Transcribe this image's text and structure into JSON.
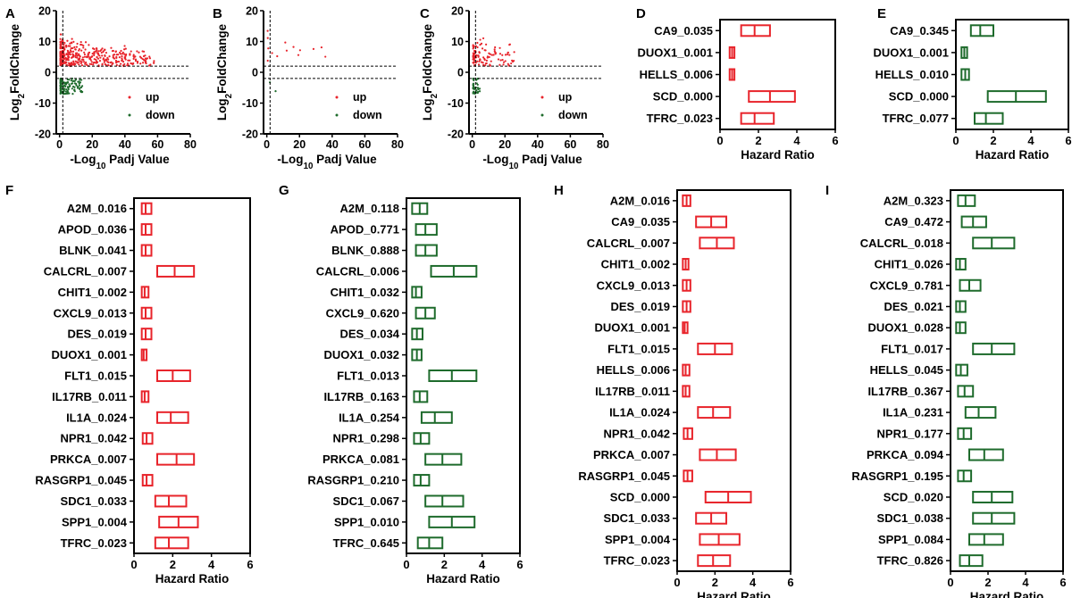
{
  "colors": {
    "red": "#e8242b",
    "green": "#1e6b2c",
    "axis": "#000000"
  },
  "volcano": [
    {
      "letter": "A",
      "type": "scatter",
      "xlabel_pre": "-Log",
      "xlabel_sub": "10",
      "xlabel_post": "Padj Value",
      "ylabel_pre": "Log",
      "ylabel_sub": "2",
      "ylabel_post": "FoldChange",
      "xlim": [
        -2,
        80
      ],
      "ylim": [
        -20,
        20
      ],
      "xticks": [
        "0",
        "20",
        "40",
        "60",
        "80"
      ],
      "yticks": [
        "-20",
        "-10",
        "0",
        "10",
        "20"
      ],
      "legend": [
        "up",
        "down"
      ],
      "density": "high",
      "up_max_x": 58,
      "down_max_x": 14
    },
    {
      "letter": "B",
      "type": "scatter",
      "xlabel_pre": "-Log",
      "xlabel_sub": "10",
      "xlabel_post": "Padj Value",
      "ylabel_pre": "Log",
      "ylabel_sub": "2",
      "ylabel_post": "FoldChange",
      "xlim": [
        -2,
        80
      ],
      "ylim": [
        -20,
        20
      ],
      "xticks": [
        "0",
        "20",
        "40",
        "60",
        "80"
      ],
      "yticks": [
        "-20",
        "-10",
        "0",
        "10",
        "20"
      ],
      "legend": [
        "up",
        "down"
      ],
      "density": "low",
      "up_max_x": 45,
      "down_max_x": 6
    },
    {
      "letter": "C",
      "type": "scatter",
      "xlabel_pre": "-Log",
      "xlabel_sub": "10",
      "xlabel_post": "Padj Value",
      "ylabel_pre": "Log",
      "ylabel_sub": "2",
      "ylabel_post": "FoldChange",
      "xlim": [
        -2,
        80
      ],
      "ylim": [
        -20,
        20
      ],
      "xticks": [
        "0",
        "20",
        "40",
        "60",
        "80"
      ],
      "yticks": [
        "-20",
        "-10",
        "0",
        "10",
        "20"
      ],
      "legend": [
        "up",
        "down"
      ],
      "density": "medium",
      "up_max_x": 27,
      "down_max_x": 5
    }
  ],
  "chart_data": [
    {
      "letter": "D",
      "type": "box",
      "color": "red",
      "xlabel": "Hazard Ratio",
      "xlim": [
        0,
        6
      ],
      "xticks": [
        "0",
        "2",
        "4",
        "6"
      ],
      "rows": [
        {
          "label": "CA9_0.035",
          "lo": 1.1,
          "mid": 1.8,
          "hi": 2.6
        },
        {
          "label": "DUOX1_0.001",
          "lo": 0.5,
          "mid": 0.63,
          "hi": 0.75
        },
        {
          "label": "HELLS_0.006",
          "lo": 0.5,
          "mid": 0.63,
          "hi": 0.75
        },
        {
          "label": "SCD_0.000",
          "lo": 1.5,
          "mid": 2.6,
          "hi": 3.9
        },
        {
          "label": "TFRC_0.023",
          "lo": 1.1,
          "mid": 1.8,
          "hi": 2.8
        }
      ]
    },
    {
      "letter": "E",
      "type": "box",
      "color": "green",
      "xlabel": "Hazard Ratio",
      "xlim": [
        0,
        6
      ],
      "xticks": [
        "0",
        "2",
        "4",
        "6"
      ],
      "rows": [
        {
          "label": "CA9_0.345",
          "lo": 0.8,
          "mid": 1.3,
          "hi": 2.0
        },
        {
          "label": "DUOX1_0.001",
          "lo": 0.3,
          "mid": 0.45,
          "hi": 0.6
        },
        {
          "label": "HELLS_0.010",
          "lo": 0.3,
          "mid": 0.5,
          "hi": 0.7
        },
        {
          "label": "SCD_0.000",
          "lo": 1.7,
          "mid": 3.2,
          "hi": 4.8
        },
        {
          "label": "TFRC_0.077",
          "lo": 1.0,
          "mid": 1.6,
          "hi": 2.5
        }
      ]
    },
    {
      "letter": "F",
      "type": "box",
      "color": "red",
      "xlabel": "Hazard Ratio",
      "xlim": [
        0,
        6
      ],
      "xticks": [
        "0",
        "2",
        "4",
        "6"
      ],
      "rows": [
        {
          "label": "A2M_0.016",
          "lo": 0.4,
          "mid": 0.6,
          "hi": 0.9
        },
        {
          "label": "APOD_0.036",
          "lo": 0.4,
          "mid": 0.6,
          "hi": 0.9
        },
        {
          "label": "BLNK_0.041",
          "lo": 0.4,
          "mid": 0.6,
          "hi": 0.9
        },
        {
          "label": "CALCRL_0.007",
          "lo": 1.2,
          "mid": 2.1,
          "hi": 3.1
        },
        {
          "label": "CHIT1_0.002",
          "lo": 0.4,
          "mid": 0.55,
          "hi": 0.75
        },
        {
          "label": "CXCL9_0.013",
          "lo": 0.4,
          "mid": 0.6,
          "hi": 0.9
        },
        {
          "label": "DES_0.019",
          "lo": 0.4,
          "mid": 0.6,
          "hi": 0.9
        },
        {
          "label": "DUOX1_0.001",
          "lo": 0.4,
          "mid": 0.5,
          "hi": 0.65
        },
        {
          "label": "FLT1_0.015",
          "lo": 1.2,
          "mid": 2.0,
          "hi": 2.9
        },
        {
          "label": "IL17RB_0.011",
          "lo": 0.4,
          "mid": 0.55,
          "hi": 0.75
        },
        {
          "label": "IL1A_0.024",
          "lo": 1.2,
          "mid": 1.9,
          "hi": 2.8
        },
        {
          "label": "NPR1_0.042",
          "lo": 0.45,
          "mid": 0.65,
          "hi": 0.95
        },
        {
          "label": "PRKCA_0.007",
          "lo": 1.2,
          "mid": 2.2,
          "hi": 3.1
        },
        {
          "label": "RASGRP1_0.045",
          "lo": 0.45,
          "mid": 0.65,
          "hi": 0.95
        },
        {
          "label": "SDC1_0.033",
          "lo": 1.1,
          "mid": 1.8,
          "hi": 2.7
        },
        {
          "label": "SPP1_0.004",
          "lo": 1.3,
          "mid": 2.3,
          "hi": 3.3
        },
        {
          "label": "TFRC_0.023",
          "lo": 1.1,
          "mid": 1.8,
          "hi": 2.8
        }
      ]
    },
    {
      "letter": "G",
      "type": "box",
      "color": "green",
      "xlabel": "Hazard Ratio",
      "xlim": [
        0,
        6
      ],
      "xticks": [
        "0",
        "2",
        "4",
        "6"
      ],
      "rows": [
        {
          "label": "A2M_0.118",
          "lo": 0.3,
          "mid": 0.7,
          "hi": 1.1
        },
        {
          "label": "APOD_0.771",
          "lo": 0.5,
          "mid": 1.0,
          "hi": 1.6
        },
        {
          "label": "BLNK_0.888",
          "lo": 0.5,
          "mid": 1.0,
          "hi": 1.6
        },
        {
          "label": "CALCRL_0.006",
          "lo": 1.3,
          "mid": 2.5,
          "hi": 3.7
        },
        {
          "label": "CHIT1_0.032",
          "lo": 0.3,
          "mid": 0.5,
          "hi": 0.8
        },
        {
          "label": "CXCL9_0.620",
          "lo": 0.5,
          "mid": 1.0,
          "hi": 1.5
        },
        {
          "label": "DES_0.034",
          "lo": 0.3,
          "mid": 0.55,
          "hi": 0.85
        },
        {
          "label": "DUOX1_0.032",
          "lo": 0.3,
          "mid": 0.55,
          "hi": 0.8
        },
        {
          "label": "FLT1_0.013",
          "lo": 1.2,
          "mid": 2.4,
          "hi": 3.7
        },
        {
          "label": "IL17RB_0.163",
          "lo": 0.4,
          "mid": 0.7,
          "hi": 1.1
        },
        {
          "label": "IL1A_0.254",
          "lo": 0.8,
          "mid": 1.5,
          "hi": 2.4
        },
        {
          "label": "NPR1_0.298",
          "lo": 0.4,
          "mid": 0.75,
          "hi": 1.2
        },
        {
          "label": "PRKCA_0.081",
          "lo": 1.0,
          "mid": 1.9,
          "hi": 2.9
        },
        {
          "label": "RASGRP1_0.210",
          "lo": 0.4,
          "mid": 0.75,
          "hi": 1.2
        },
        {
          "label": "SDC1_0.067",
          "lo": 1.0,
          "mid": 1.9,
          "hi": 3.0
        },
        {
          "label": "SPP1_0.010",
          "lo": 1.2,
          "mid": 2.4,
          "hi": 3.6
        },
        {
          "label": "TFRC_0.645",
          "lo": 0.6,
          "mid": 1.2,
          "hi": 1.9
        }
      ]
    },
    {
      "letter": "H",
      "type": "box",
      "color": "red",
      "xlabel": "Hazard Ratio",
      "xlim": [
        0,
        6
      ],
      "xticks": [
        "0",
        "2",
        "4",
        "6"
      ],
      "rows": [
        {
          "label": "A2M_0.016",
          "lo": 0.3,
          "mid": 0.5,
          "hi": 0.7
        },
        {
          "label": "CA9_0.035",
          "lo": 1.0,
          "mid": 1.8,
          "hi": 2.6
        },
        {
          "label": "CALCRL_0.007",
          "lo": 1.2,
          "mid": 2.1,
          "hi": 3.0
        },
        {
          "label": "CHIT1_0.002",
          "lo": 0.3,
          "mid": 0.45,
          "hi": 0.6
        },
        {
          "label": "CXCL9_0.013",
          "lo": 0.3,
          "mid": 0.5,
          "hi": 0.7
        },
        {
          "label": "DES_0.019",
          "lo": 0.3,
          "mid": 0.5,
          "hi": 0.7
        },
        {
          "label": "DUOX1_0.001",
          "lo": 0.3,
          "mid": 0.4,
          "hi": 0.55
        },
        {
          "label": "FLT1_0.015",
          "lo": 1.1,
          "mid": 2.0,
          "hi": 2.9
        },
        {
          "label": "HELLS_0.006",
          "lo": 0.3,
          "mid": 0.45,
          "hi": 0.65
        },
        {
          "label": "IL17RB_0.011",
          "lo": 0.3,
          "mid": 0.45,
          "hi": 0.65
        },
        {
          "label": "IL1A_0.024",
          "lo": 1.1,
          "mid": 1.9,
          "hi": 2.8
        },
        {
          "label": "NPR1_0.042",
          "lo": 0.35,
          "mid": 0.55,
          "hi": 0.8
        },
        {
          "label": "PRKCA_0.007",
          "lo": 1.2,
          "mid": 2.1,
          "hi": 3.1
        },
        {
          "label": "RASGRP1_0.045",
          "lo": 0.35,
          "mid": 0.55,
          "hi": 0.8
        },
        {
          "label": "SCD_0.000",
          "lo": 1.5,
          "mid": 2.7,
          "hi": 3.9
        },
        {
          "label": "SDC1_0.033",
          "lo": 1.0,
          "mid": 1.8,
          "hi": 2.6
        },
        {
          "label": "SPP1_0.004",
          "lo": 1.2,
          "mid": 2.2,
          "hi": 3.3
        },
        {
          "label": "TFRC_0.023",
          "lo": 1.1,
          "mid": 1.9,
          "hi": 2.8
        }
      ]
    },
    {
      "letter": "I",
      "type": "box",
      "color": "green",
      "xlabel": "Hazard Ratio",
      "xlim": [
        0,
        6
      ],
      "xticks": [
        "0",
        "2",
        "4",
        "6"
      ],
      "rows": [
        {
          "label": "A2M_0.323",
          "lo": 0.4,
          "mid": 0.8,
          "hi": 1.3
        },
        {
          "label": "CA9_0.472",
          "lo": 0.6,
          "mid": 1.2,
          "hi": 1.9
        },
        {
          "label": "CALCRL_0.018",
          "lo": 1.2,
          "mid": 2.2,
          "hi": 3.4
        },
        {
          "label": "CHIT1_0.026",
          "lo": 0.3,
          "mid": 0.5,
          "hi": 0.8
        },
        {
          "label": "CXCL9_0.781",
          "lo": 0.5,
          "mid": 1.0,
          "hi": 1.6
        },
        {
          "label": "DES_0.021",
          "lo": 0.3,
          "mid": 0.5,
          "hi": 0.8
        },
        {
          "label": "DUOX1_0.028",
          "lo": 0.3,
          "mid": 0.5,
          "hi": 0.8
        },
        {
          "label": "FLT1_0.017",
          "lo": 1.2,
          "mid": 2.2,
          "hi": 3.4
        },
        {
          "label": "HELLS_0.045",
          "lo": 0.3,
          "mid": 0.55,
          "hi": 0.9
        },
        {
          "label": "IL17RB_0.367",
          "lo": 0.4,
          "mid": 0.75,
          "hi": 1.2
        },
        {
          "label": "IL1A_0.231",
          "lo": 0.8,
          "mid": 1.5,
          "hi": 2.4
        },
        {
          "label": "NPR1_0.177",
          "lo": 0.4,
          "mid": 0.7,
          "hi": 1.1
        },
        {
          "label": "PRKCA_0.094",
          "lo": 1.0,
          "mid": 1.8,
          "hi": 2.8
        },
        {
          "label": "RASGRP1_0.195",
          "lo": 0.4,
          "mid": 0.7,
          "hi": 1.1
        },
        {
          "label": "SCD_0.020",
          "lo": 1.2,
          "mid": 2.2,
          "hi": 3.3
        },
        {
          "label": "SDC1_0.038",
          "lo": 1.2,
          "mid": 2.2,
          "hi": 3.4
        },
        {
          "label": "SPP1_0.084",
          "lo": 1.0,
          "mid": 1.8,
          "hi": 2.8
        },
        {
          "label": "TFRC_0.826",
          "lo": 0.5,
          "mid": 1.0,
          "hi": 1.7
        }
      ]
    }
  ]
}
